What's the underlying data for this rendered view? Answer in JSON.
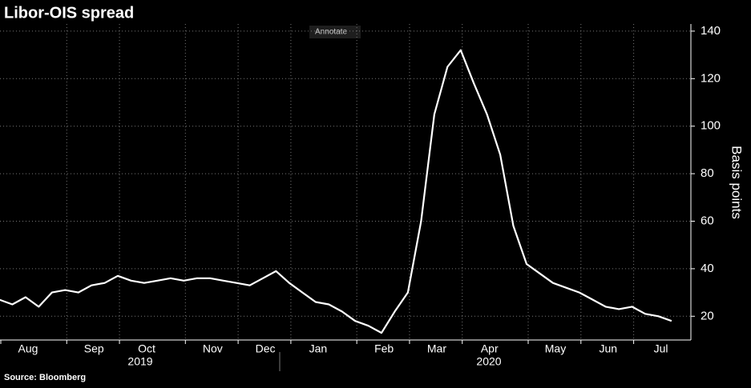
{
  "chart_data": {
    "type": "line",
    "title": "Libor-OIS spread",
    "source": "Source: Bloomberg",
    "button": "Annotate",
    "y_label": "Basis points",
    "years": [
      "2019",
      "2020"
    ],
    "categories": [
      "Aug",
      null,
      null,
      null,
      null,
      "Sep",
      null,
      null,
      null,
      "Oct",
      null,
      null,
      null,
      null,
      "Nov",
      null,
      null,
      null,
      "Dec",
      null,
      null,
      null,
      "Jan",
      null,
      null,
      null,
      null,
      "Feb",
      null,
      null,
      null,
      "Mar",
      null,
      null,
      null,
      "Apr",
      null,
      null,
      null,
      null,
      "May",
      null,
      null,
      null,
      "Jun",
      null,
      null,
      null,
      "Jul",
      null,
      null,
      null
    ],
    "series": [
      {
        "name": "Libor-OIS spread",
        "color": "#ffffff",
        "values": [
          27,
          25,
          28,
          24,
          30,
          31,
          30,
          33,
          34,
          37,
          35,
          34,
          35,
          36,
          35,
          36,
          36,
          35,
          34,
          33,
          36,
          39,
          34,
          30,
          26,
          25,
          22,
          18,
          16,
          13,
          22,
          30,
          60,
          105,
          125,
          132,
          118,
          105,
          88,
          58,
          42,
          38,
          34,
          32,
          30,
          27,
          24,
          23,
          24,
          21,
          20,
          18
        ]
      }
    ],
    "ylim": [
      10,
      143
    ],
    "yticks": [
      20,
      40,
      60,
      80,
      100,
      120,
      140
    ],
    "grid": true
  }
}
